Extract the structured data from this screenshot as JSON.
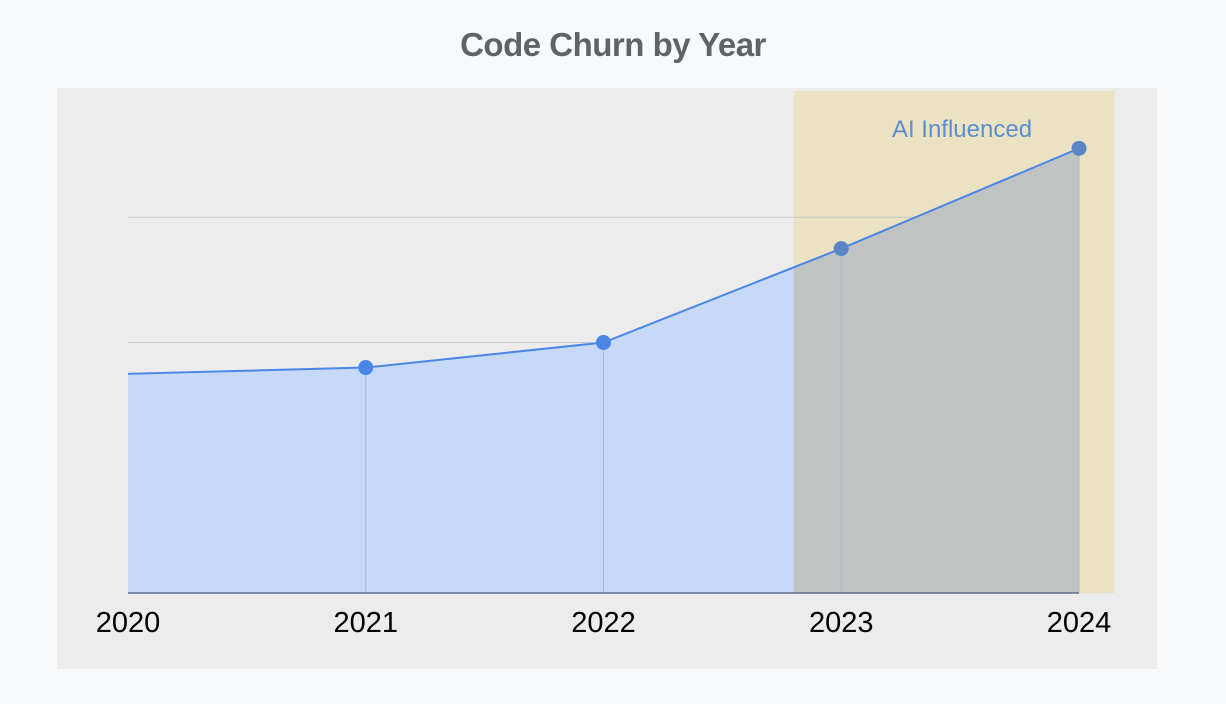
{
  "chart_data": {
    "type": "area",
    "title": "Code Churn by Year",
    "xlabel": "",
    "ylabel": "",
    "categories": [
      "2020",
      "2021",
      "2022",
      "2023",
      "2024"
    ],
    "values": [
      0.35,
      0.36,
      0.4,
      0.55,
      0.71
    ],
    "ylim": [
      0,
      0.8
    ],
    "y_ticks_shown": false,
    "grid": true,
    "legend": "none",
    "highlight_region": {
      "label": "AI Influenced",
      "from_x": 2022.8,
      "to_x": 2024.15
    }
  },
  "colors": {
    "page_background": "#f8f9fa",
    "plot_background": "#ececec",
    "series_line": "#4a86e8",
    "series_fill": "#c6d9f9",
    "highlight_fill": "#ebe1c3",
    "highlight_overlay": "#bfc4c3",
    "annotation_text": "#5b8fce",
    "title_text": "#5f6368"
  }
}
